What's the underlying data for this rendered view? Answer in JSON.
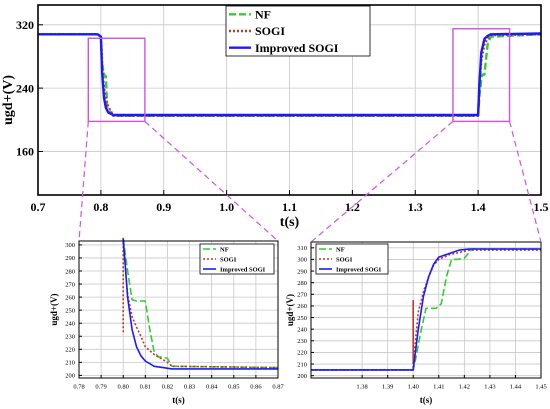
{
  "colors": {
    "nf": "#33cc33",
    "sogi": "#c0392b",
    "improved": "#1a1aff",
    "zoom": "#cc55dd",
    "grid": "#c8c8c8"
  },
  "legend_labels": [
    "NF",
    "SOGI",
    "Improved SOGI"
  ],
  "chart_data": [
    {
      "type": "line",
      "xlabel": "t(s)",
      "ylabel": "ugd+(V)",
      "xlim": [
        0.7,
        1.5
      ],
      "ylim": [
        105,
        345
      ],
      "xticks": [
        0.7,
        0.8,
        0.9,
        1.0,
        1.1,
        1.2,
        1.3,
        1.4,
        1.5
      ],
      "xtick_labels": [
        "0.7",
        "0.8",
        "0.9",
        "1.0",
        "1.1",
        "1.2",
        "1.3",
        "1.4",
        "1.5"
      ],
      "yticks": [
        160,
        240,
        320
      ],
      "ytick_labels": [
        "160",
        "240",
        "320"
      ],
      "grid": true,
      "legend": "top-center",
      "series": [
        {
          "name": "NF",
          "style": "dashed",
          "x": [
            0.7,
            0.795,
            0.8,
            0.802,
            0.806,
            0.808,
            0.81,
            0.815,
            0.82,
            1.4,
            1.402,
            1.406,
            1.41,
            1.415,
            1.42,
            1.5
          ],
          "y": [
            308,
            308,
            305,
            270,
            255,
            255,
            215,
            210,
            205,
            205,
            230,
            257,
            257,
            295,
            305,
            308
          ]
        },
        {
          "name": "SOGI",
          "style": "dotted",
          "x": [
            0.7,
            0.795,
            0.8,
            0.803,
            0.806,
            0.81,
            0.815,
            0.82,
            1.4,
            1.402,
            1.405,
            1.41,
            1.415,
            1.42,
            1.5
          ],
          "y": [
            308,
            308,
            305,
            255,
            235,
            220,
            212,
            205,
            205,
            245,
            275,
            295,
            303,
            307,
            308
          ]
        },
        {
          "name": "Improved SOGI",
          "style": "solid",
          "x": [
            0.7,
            0.795,
            0.8,
            0.802,
            0.805,
            0.808,
            0.812,
            0.82,
            1.4,
            1.402,
            1.405,
            1.41,
            1.415,
            1.42,
            1.5
          ],
          "y": [
            308,
            308,
            305,
            260,
            228,
            215,
            209,
            206,
            206,
            245,
            285,
            302,
            306,
            308,
            309
          ]
        }
      ]
    },
    {
      "type": "line",
      "xlabel": "t(s)",
      "ylabel": "ugd+(V)",
      "xlim": [
        0.78,
        0.87
      ],
      "ylim": [
        198,
        303
      ],
      "xticks": [
        0.78,
        0.79,
        0.8,
        0.81,
        0.82,
        0.83,
        0.84,
        0.85,
        0.86,
        0.87
      ],
      "xtick_labels": [
        "0.78",
        "0.79",
        "0.80",
        "0.81",
        "0.82",
        "0.83",
        "0.84",
        "0.85",
        "0.86",
        "0.87"
      ],
      "yticks": [
        200,
        210,
        220,
        230,
        240,
        250,
        260,
        270,
        280,
        290,
        300
      ],
      "ytick_labels": [
        "200",
        "210",
        "220",
        "230",
        "240",
        "250",
        "260",
        "270",
        "280",
        "290",
        "300"
      ],
      "grid": true,
      "legend": "top-right",
      "series": [
        {
          "name": "NF",
          "style": "dashed",
          "x": [
            0.8,
            0.802,
            0.804,
            0.806,
            0.808,
            0.81,
            0.812,
            0.814,
            0.816,
            0.818,
            0.82,
            0.822,
            0.87
          ],
          "y": [
            305,
            280,
            258,
            257,
            257,
            257,
            235,
            218,
            214,
            214,
            213,
            207,
            206
          ]
        },
        {
          "name": "SOGI",
          "style": "dotted",
          "x": [
            0.8,
            0.8,
            0.8,
            0.802,
            0.804,
            0.806,
            0.808,
            0.81,
            0.814,
            0.818,
            0.82,
            0.822,
            0.87
          ],
          "y": [
            233,
            290,
            305,
            262,
            245,
            237,
            230,
            222,
            216,
            212,
            210,
            207,
            206
          ]
        },
        {
          "name": "Improved SOGI",
          "style": "solid",
          "x": [
            0.8,
            0.802,
            0.804,
            0.806,
            0.808,
            0.81,
            0.814,
            0.818,
            0.822,
            0.87
          ],
          "y": [
            305,
            260,
            235,
            222,
            215,
            211,
            207,
            206,
            205,
            205
          ]
        }
      ]
    },
    {
      "type": "line",
      "xlabel": "t(s)",
      "ylabel": "ugd+(V)",
      "xlim": [
        1.36,
        1.45
      ],
      "ylim": [
        198,
        315
      ],
      "xticks": [
        1.38,
        1.39,
        1.4,
        1.41,
        1.42,
        1.43,
        1.44,
        1.45
      ],
      "xtick_labels": [
        "1.38",
        "1.39",
        "1.40",
        "1.41",
        "1.42",
        "1.43",
        "1.44",
        "1.45"
      ],
      "yticks": [
        200,
        210,
        220,
        230,
        240,
        250,
        260,
        270,
        280,
        290,
        300,
        310
      ],
      "ytick_labels": [
        "200",
        "210",
        "220",
        "230",
        "240",
        "250",
        "260",
        "270",
        "280",
        "290",
        "300",
        "310"
      ],
      "grid": true,
      "legend": "top-right",
      "series": [
        {
          "name": "NF",
          "style": "dashed",
          "x": [
            1.36,
            1.4,
            1.401,
            1.403,
            1.405,
            1.407,
            1.409,
            1.411,
            1.413,
            1.415,
            1.417,
            1.42,
            1.423,
            1.45
          ],
          "y": [
            205,
            205,
            215,
            238,
            258,
            258,
            258,
            262,
            285,
            300,
            300,
            301,
            309,
            309
          ]
        },
        {
          "name": "SOGI",
          "style": "dotted",
          "x": [
            1.36,
            1.4,
            1.4,
            1.4,
            1.402,
            1.404,
            1.406,
            1.408,
            1.41,
            1.414,
            1.418,
            1.422,
            1.45
          ],
          "y": [
            205,
            205,
            265,
            210,
            255,
            272,
            285,
            295,
            300,
            304,
            306,
            308,
            308
          ]
        },
        {
          "name": "Improved SOGI",
          "style": "solid",
          "x": [
            1.36,
            1.4,
            1.402,
            1.404,
            1.406,
            1.408,
            1.41,
            1.414,
            1.418,
            1.422,
            1.45
          ],
          "y": [
            205,
            205,
            240,
            268,
            285,
            296,
            302,
            305,
            308,
            309,
            309
          ]
        }
      ]
    }
  ]
}
